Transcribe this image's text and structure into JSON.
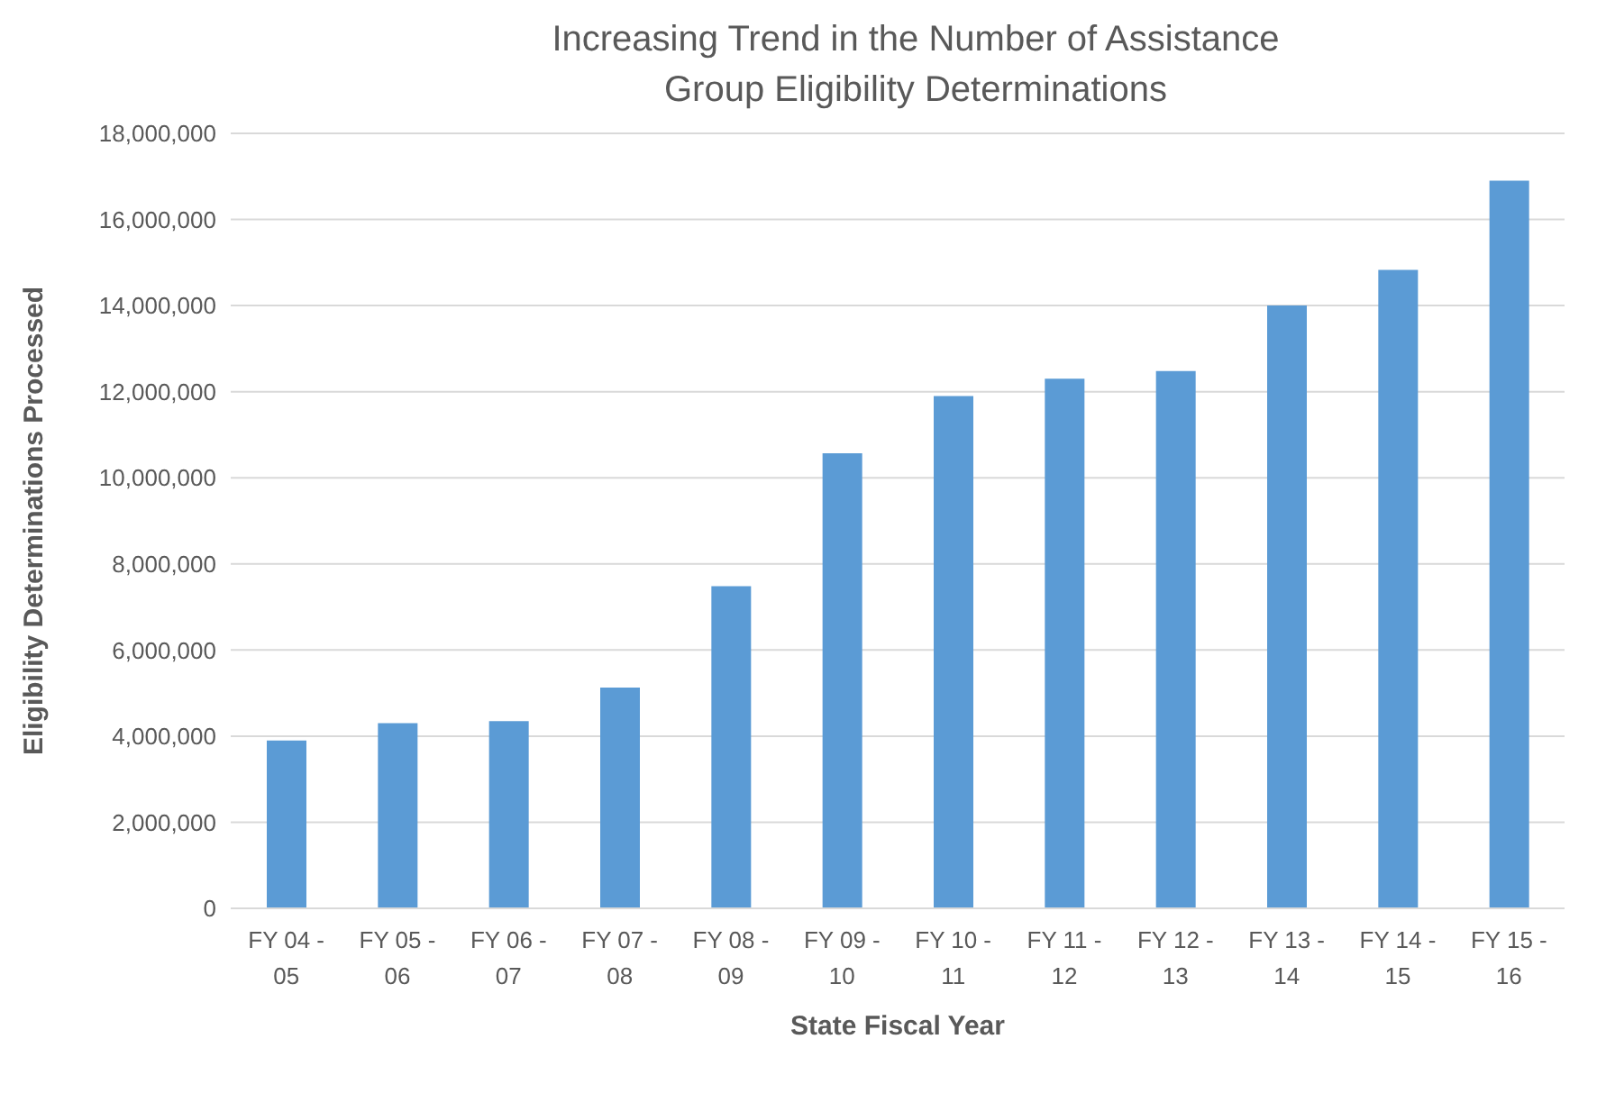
{
  "chart_data": {
    "type": "bar",
    "title": "Increasing Trend in the Number of Assistance Group Eligibility Determinations",
    "xlabel": "State Fiscal Year",
    "ylabel": "Eligibility Determinations Processed",
    "categories": [
      "FY 04 - 05",
      "FY 05 - 06",
      "FY 06 - 07",
      "FY 07 - 08",
      "FY 08 - 09",
      "FY 09 - 10",
      "FY 10 - 11",
      "FY 11 - 12",
      "FY 12 - 13",
      "FY 13 - 14",
      "FY 14 - 15",
      "FY 15 - 16"
    ],
    "values": [
      3900000,
      4300000,
      4350000,
      5130000,
      7480000,
      10570000,
      11900000,
      12300000,
      12480000,
      14000000,
      14830000,
      16900000
    ],
    "color": "#5b9bd5",
    "ylim": [
      0,
      18000000
    ],
    "yticks": [
      0,
      {
        "value": 2000000,
        "label": "2,000,000"
      },
      {
        "value": 4000000,
        "label": "4,000,000"
      },
      {
        "value": 6000000,
        "label": "6,000,000"
      },
      {
        "value": 8000000,
        "label": "8,000,000"
      },
      {
        "value": 10000000,
        "label": "10,000,000"
      },
      {
        "value": 12000000,
        "label": "12,000,000"
      },
      {
        "value": 14000000,
        "label": "14,000,000"
      },
      {
        "value": 16000000,
        "label": "16,000,000"
      },
      {
        "value": 18000000,
        "label": "18,000,000"
      }
    ],
    "grid": "y",
    "legend": false
  }
}
